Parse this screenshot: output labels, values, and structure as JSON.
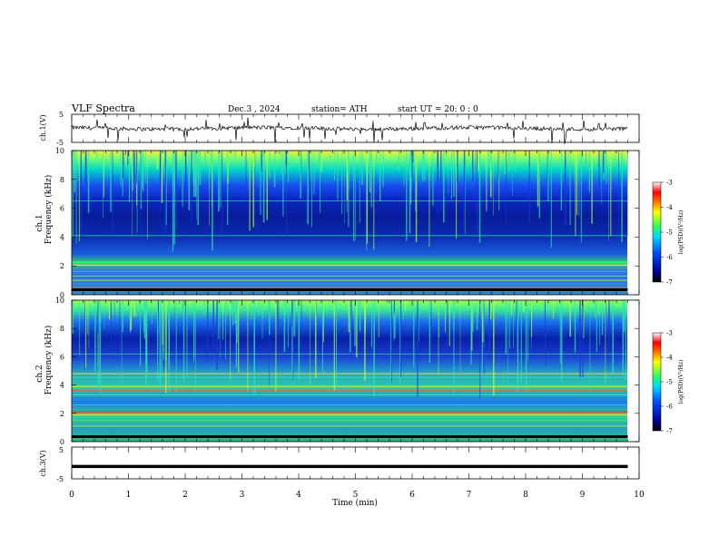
{
  "header": {
    "title": "VLF  Spectra",
    "date": "Dec.3   , 2024",
    "station": "station= ATH",
    "start": "start  UT  =    20: 0   : 0"
  },
  "chart_data": [
    {
      "id": "ch1-waveform",
      "type": "line",
      "ylabel": "ch.1(V)",
      "ylim": [
        -5,
        5
      ],
      "yticks": [
        5,
        -5
      ],
      "xlim": [
        0,
        10
      ],
      "signal_end_x": 9.8
    },
    {
      "id": "ch1-spectrogram",
      "type": "heatmap",
      "ylabel_top": "ch.1",
      "ylabel": "Frequency  (kHz)",
      "ylim": [
        0,
        10
      ],
      "yticks": [
        0,
        2,
        4,
        6,
        8,
        10
      ],
      "xlim": [
        0,
        10
      ],
      "signal_end_x": 9.8,
      "colorbar": {
        "label": "log(PSD)(V²/Hz)",
        "range": [
          -7,
          -3
        ],
        "ticks": [
          -3,
          -4,
          -5,
          -6,
          -7
        ]
      }
    },
    {
      "id": "ch2-spectrogram",
      "type": "heatmap",
      "ylabel_top": "ch.2",
      "ylabel": "Frequency  (kHz)",
      "ylim": [
        0,
        10
      ],
      "yticks": [
        0,
        2,
        4,
        6,
        8,
        10
      ],
      "xlim": [
        0,
        10
      ],
      "signal_end_x": 9.8,
      "colorbar": {
        "label": "log(PSD)(V²/Hz)",
        "range": [
          -7,
          -3
        ],
        "ticks": [
          -3,
          -4,
          -5,
          -6,
          -7
        ]
      }
    },
    {
      "id": "ch3-waveform",
      "type": "line",
      "ylabel": "ch.3(V)",
      "ylim": [
        -5,
        5
      ],
      "yticks": [
        5,
        -5
      ],
      "xlim": [
        0,
        10
      ],
      "signal_end_x": 9.8,
      "level": -1.1
    }
  ],
  "xaxis": {
    "label": "Time  (min)",
    "ticks": [
      "0",
      "1",
      "2",
      "3",
      "4",
      "5",
      "6",
      "7",
      "8",
      "9",
      "10"
    ]
  },
  "colors": {
    "trace": "#000000",
    "axis": "#000000"
  }
}
